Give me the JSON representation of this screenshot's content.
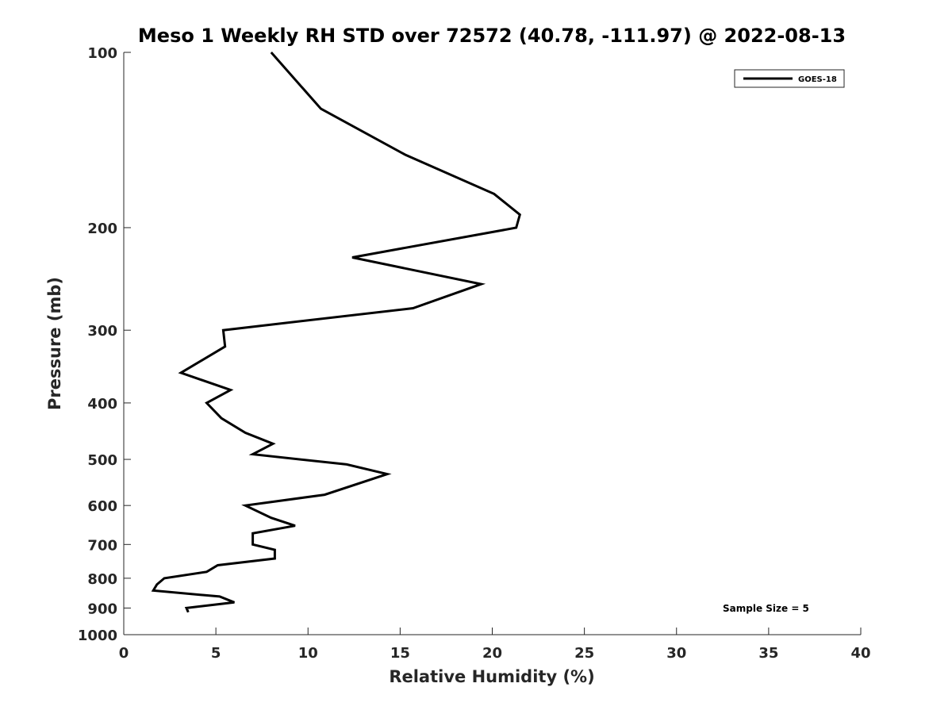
{
  "chart_data": {
    "type": "line",
    "title": "Meso 1 Weekly RH STD over 72572 (40.78, -111.97) @ 2022-08-13",
    "xlabel": "Relative Humidity (%)",
    "ylabel": "Pressure (mb)",
    "xlim": [
      0,
      40
    ],
    "ylim": [
      100,
      1000
    ],
    "y_scale": "log",
    "y_reversed": true,
    "x_ticks": [
      "0",
      "5",
      "10",
      "15",
      "20",
      "25",
      "30",
      "35",
      "40"
    ],
    "y_ticks": [
      "100",
      "200",
      "300",
      "400",
      "500",
      "600",
      "700",
      "800",
      "900",
      "1000"
    ],
    "grid": false,
    "legend_position": "top-right",
    "annotation": "Sample Size = 5",
    "series": [
      {
        "name": "GOES-18",
        "color": "#000000",
        "points": [
          {
            "x": 8.0,
            "y": 100
          },
          {
            "x": 10.7,
            "y": 125
          },
          {
            "x": 15.3,
            "y": 150
          },
          {
            "x": 20.1,
            "y": 175
          },
          {
            "x": 21.5,
            "y": 190
          },
          {
            "x": 21.3,
            "y": 200
          },
          {
            "x": 12.4,
            "y": 225
          },
          {
            "x": 19.4,
            "y": 250
          },
          {
            "x": 15.7,
            "y": 275
          },
          {
            "x": 5.4,
            "y": 300
          },
          {
            "x": 5.5,
            "y": 320
          },
          {
            "x": 3.1,
            "y": 355
          },
          {
            "x": 5.8,
            "y": 380
          },
          {
            "x": 4.5,
            "y": 400
          },
          {
            "x": 5.3,
            "y": 425
          },
          {
            "x": 6.6,
            "y": 450
          },
          {
            "x": 8.1,
            "y": 470
          },
          {
            "x": 7.0,
            "y": 490
          },
          {
            "x": 12.1,
            "y": 510
          },
          {
            "x": 14.3,
            "y": 530
          },
          {
            "x": 10.9,
            "y": 575
          },
          {
            "x": 6.6,
            "y": 600
          },
          {
            "x": 8.0,
            "y": 630
          },
          {
            "x": 9.3,
            "y": 650
          },
          {
            "x": 7.0,
            "y": 670
          },
          {
            "x": 7.0,
            "y": 700
          },
          {
            "x": 8.2,
            "y": 715
          },
          {
            "x": 8.2,
            "y": 740
          },
          {
            "x": 5.1,
            "y": 760
          },
          {
            "x": 4.5,
            "y": 780
          },
          {
            "x": 2.2,
            "y": 800
          },
          {
            "x": 1.8,
            "y": 820
          },
          {
            "x": 1.6,
            "y": 840
          },
          {
            "x": 5.2,
            "y": 860
          },
          {
            "x": 6.0,
            "y": 880
          },
          {
            "x": 3.4,
            "y": 900
          },
          {
            "x": 3.5,
            "y": 915
          }
        ]
      }
    ]
  }
}
